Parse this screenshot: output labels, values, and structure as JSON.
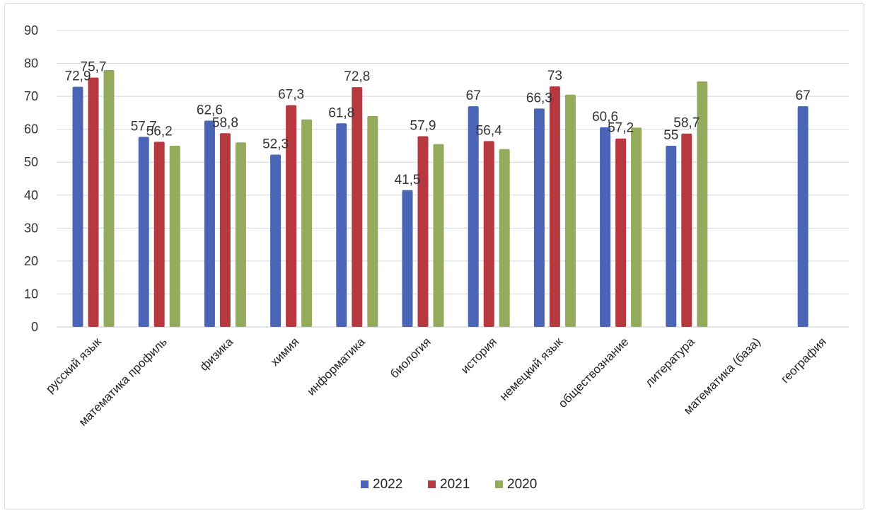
{
  "chart_data": {
    "type": "bar",
    "title": "",
    "xlabel": "",
    "ylabel": "",
    "ylim": [
      0,
      90
    ],
    "yticks": [
      0,
      10,
      20,
      30,
      40,
      50,
      60,
      70,
      80,
      90
    ],
    "grid": true,
    "legend_position": "bottom",
    "categories": [
      "русский язык",
      "математика профиль",
      "физика",
      "химия",
      "информатика",
      "биология",
      "история",
      "немецкий язык",
      "обществознание",
      "литература",
      "математика (база)",
      "география"
    ],
    "series": [
      {
        "name": "2022",
        "color": "#4a65b5",
        "values": [
          72.9,
          57.7,
          62.6,
          52.3,
          61.8,
          41.5,
          67,
          66.3,
          60.6,
          55,
          null,
          67
        ],
        "labels": [
          "72,9",
          "57,7",
          "62,6",
          "52,3",
          "61,8",
          "41,5",
          "67",
          "66,3",
          "60,6",
          "55",
          "",
          "67"
        ]
      },
      {
        "name": "2021",
        "color": "#b8383f",
        "values": [
          75.7,
          56.2,
          58.8,
          67.3,
          72.8,
          57.9,
          56.4,
          73,
          57.2,
          58.7,
          null,
          null
        ],
        "labels": [
          "75,7",
          "56,2",
          "58,8",
          "67,3",
          "72,8",
          "57,9",
          "56,4",
          "73",
          "57,2",
          "58,7",
          "",
          ""
        ]
      },
      {
        "name": "2020",
        "color": "#94aa5c",
        "values": [
          78,
          55,
          56,
          63,
          64,
          55.5,
          54,
          70.5,
          60.5,
          74.5,
          null,
          null
        ],
        "labels": [
          "",
          "",
          "",
          "",
          "",
          "",
          "",
          "",
          "",
          "",
          "",
          ""
        ]
      }
    ]
  }
}
